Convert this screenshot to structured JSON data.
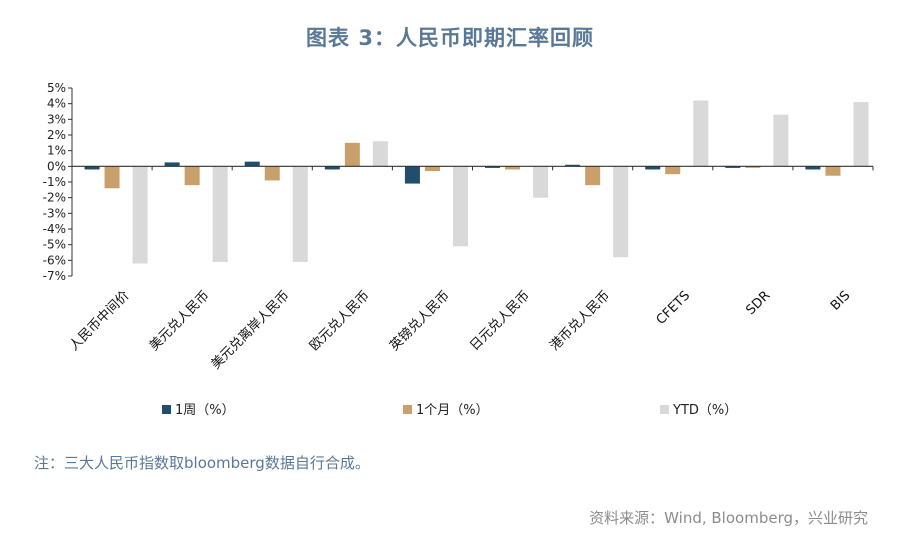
{
  "title": "图表 3：人民币即期汇率回顾",
  "note": "注：三大人民币指数取bloomberg数据自行合成。",
  "source": "资料来源：Wind, Bloomberg，兴业研究",
  "chart_data": {
    "type": "bar",
    "categories": [
      "人民币中间价",
      "美元兑人民币",
      "美元兑离岸人民币",
      "欧元兑人民币",
      "英镑兑人民币",
      "日元兑人民币",
      "港币兑人民币",
      "CFETS",
      "SDR",
      "BIS"
    ],
    "series": [
      {
        "name": "1周（%）",
        "color": "#1f4e6e",
        "values": [
          -0.2,
          0.25,
          0.3,
          -0.2,
          -1.1,
          -0.1,
          0.1,
          -0.2,
          -0.1,
          -0.2
        ]
      },
      {
        "name": "1个月（%）",
        "color": "#c9a06b",
        "values": [
          -1.4,
          -1.2,
          -0.9,
          1.5,
          -0.3,
          -0.2,
          -1.2,
          -0.5,
          -0.1,
          -0.6
        ]
      },
      {
        "name": "YTD（%）",
        "color": "#d9d9d9",
        "values": [
          -6.2,
          -6.1,
          -6.1,
          1.6,
          -5.1,
          -2.0,
          -5.8,
          4.2,
          3.3,
          4.1
        ]
      }
    ],
    "ylim": [
      -7,
      5
    ],
    "yticks": [
      "5%",
      "4%",
      "3%",
      "2%",
      "1%",
      "0%",
      "-1%",
      "-2%",
      "-3%",
      "-4%",
      "-5%",
      "-6%",
      "-7%"
    ],
    "legend_position": "bottom",
    "grid": false
  }
}
